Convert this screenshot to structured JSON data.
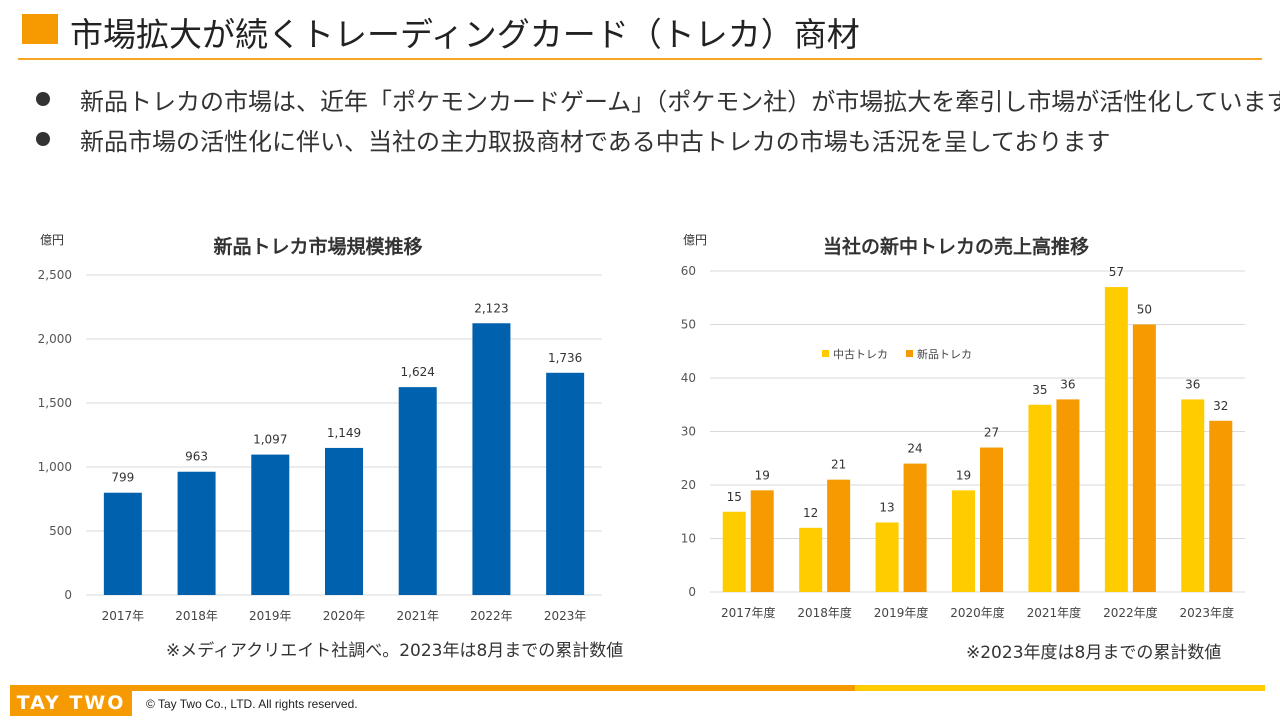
{
  "header": {
    "title": "市場拡大が続くトレーディングカード（トレカ）商材",
    "accent_color": "#F59A00"
  },
  "bullets": [
    "新品トレカの市場は、近年「ポケモンカードゲーム」（ポケモン社）が市場拡大を牽引し市場が活性化しています",
    "新品市場の活性化に伴い、当社の主力取扱商材である中古トレカの市場も活況を呈しております"
  ],
  "chart_data": [
    {
      "type": "bar",
      "title": "新品トレカ市場規模推移",
      "unit_label": "億円",
      "categories": [
        "2017年",
        "2018年",
        "2019年",
        "2020年",
        "2021年",
        "2022年",
        "2023年"
      ],
      "series": [
        {
          "values": [
            799,
            963,
            1097,
            1149,
            1624,
            2123,
            1736
          ],
          "color": "#0061AF"
        }
      ],
      "data_labels": [
        "799",
        "963",
        "1,097",
        "1,149",
        "1,624",
        "2,123",
        "1,736"
      ],
      "ylim": [
        0,
        2500
      ],
      "yticks": [
        0,
        500,
        1000,
        1500,
        2000,
        2500
      ],
      "ytick_labels": [
        "0",
        "500",
        "1,000",
        "1,500",
        "2,000",
        "2,500"
      ],
      "grid": true,
      "note": "※メディアクリエイト社調べ。2023年は8月までの累計数値"
    },
    {
      "type": "bar",
      "title": "当社の新中トレカの売上高推移",
      "unit_label": "億円",
      "categories": [
        "2017年度",
        "2018年度",
        "2019年度",
        "2020年度",
        "2021年度",
        "2022年度",
        "2023年度"
      ],
      "series": [
        {
          "name": "中古トレカ",
          "values": [
            15,
            12,
            13,
            19,
            35,
            57,
            36
          ],
          "color": "#FFCC00"
        },
        {
          "name": "新品トレカ",
          "values": [
            19,
            21,
            24,
            27,
            36,
            50,
            32
          ],
          "color": "#F59A00"
        }
      ],
      "ylim": [
        0,
        60
      ],
      "yticks": [
        0,
        10,
        20,
        30,
        40,
        50,
        60
      ],
      "ytick_labels": [
        "0",
        "10",
        "20",
        "30",
        "40",
        "50",
        "60"
      ],
      "grid": true,
      "legend_position": "top-left",
      "note": "※2023年度は8月までの累計数値"
    }
  ],
  "footer": {
    "logo_text": "TAY TWO",
    "copyright": "© Tay Two Co., LTD. All rights reserved."
  }
}
